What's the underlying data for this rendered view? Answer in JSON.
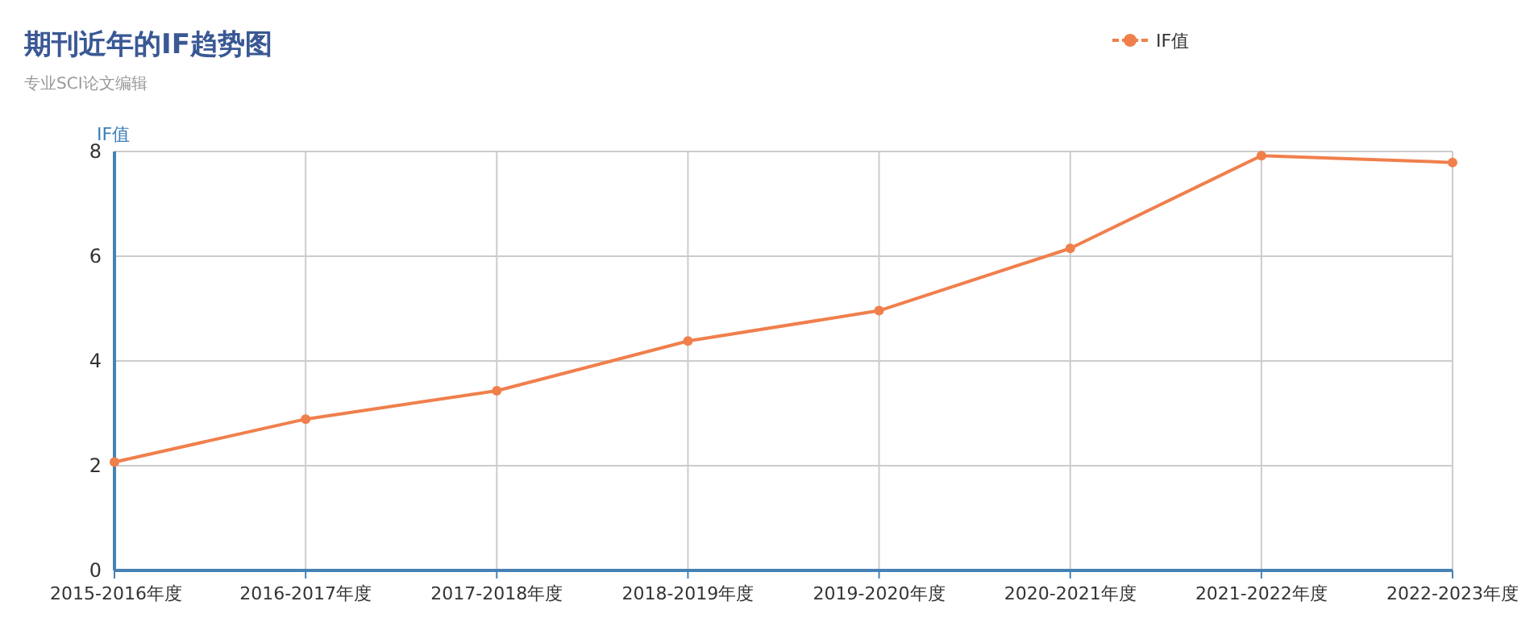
{
  "chart_data": {
    "type": "line",
    "title": "期刊近年的IF趋势图",
    "subtitle": "专业SCI论文编辑",
    "ylabel": "IF值",
    "categories": [
      "2015-2016年度",
      "2016-2017年度",
      "2017-2018年度",
      "2018-2019年度",
      "2019-2020年度",
      "2020-2021年度",
      "2021-2022年度",
      "2022-2023年度"
    ],
    "series": [
      {
        "name": "IF值",
        "color": "#f07f4c",
        "values": [
          2.07,
          2.89,
          3.43,
          4.38,
          4.96,
          6.15,
          7.92,
          7.79
        ]
      }
    ],
    "ylim": [
      0,
      8
    ],
    "yticks": [
      0,
      2,
      4,
      6,
      8
    ],
    "grid": true,
    "legend": "top right",
    "marker": "circle",
    "line_style": "solid"
  }
}
